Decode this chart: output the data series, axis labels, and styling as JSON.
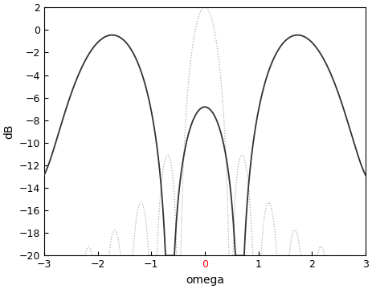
{
  "xlim": [
    -3.14159,
    3.14159
  ],
  "xlim_display": [
    -3,
    3
  ],
  "ylim": [
    -20,
    2
  ],
  "xlabel": "omega",
  "ylabel": "dB",
  "xticks": [
    -3,
    -2,
    -1,
    0,
    1,
    2,
    3
  ],
  "yticks": [
    -20,
    -18,
    -16,
    -14,
    -12,
    -10,
    -8,
    -6,
    -4,
    -2,
    0,
    2
  ],
  "solid_color": "#333333",
  "dotted_color": "#aaaaaa",
  "background_color": "#ffffff",
  "figsize": [
    4.63,
    3.6
  ],
  "dpi": 100,
  "solid_linewidth": 1.3,
  "dotted_linewidth": 0.9,
  "N_solid": 5,
  "N_dotted": 15,
  "solid_scale": 1.0,
  "dotted_scale": 1.26,
  "omega_shift_solid": 2.0
}
